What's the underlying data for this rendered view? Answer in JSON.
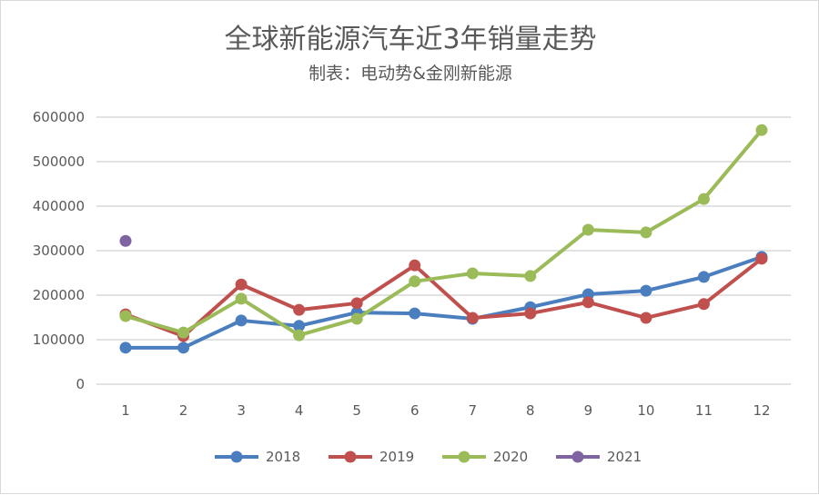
{
  "chart_data": {
    "type": "line",
    "title": "全球新能源汽车近3年销量走势",
    "subtitle": "制表：电动势&金刚新能源",
    "xlabel": "",
    "ylabel": "",
    "categories": [
      "1",
      "2",
      "3",
      "4",
      "5",
      "6",
      "7",
      "8",
      "9",
      "10",
      "11",
      "12"
    ],
    "ylim": [
      0,
      600000
    ],
    "yticks": [
      "0",
      "100000",
      "200000",
      "300000",
      "400000",
      "500000",
      "600000"
    ],
    "grid": true,
    "legend_position": "bottom",
    "series": [
      {
        "name": "2018",
        "color": "#4a7ebf",
        "values": [
          82000,
          82000,
          143000,
          131000,
          161000,
          159000,
          147000,
          173000,
          202000,
          210000,
          241000,
          286000
        ]
      },
      {
        "name": "2019",
        "color": "#c0504d",
        "values": [
          157000,
          108000,
          224000,
          167000,
          182000,
          267000,
          149000,
          159000,
          184000,
          149000,
          180000,
          282000
        ]
      },
      {
        "name": "2020",
        "color": "#9bbb59",
        "values": [
          153000,
          116000,
          192000,
          110000,
          147000,
          231000,
          249000,
          243000,
          347000,
          341000,
          416000,
          571000
        ]
      },
      {
        "name": "2021",
        "color": "#8064a2",
        "values": [
          322000,
          null,
          null,
          null,
          null,
          null,
          null,
          null,
          null,
          null,
          null,
          null
        ]
      }
    ]
  }
}
